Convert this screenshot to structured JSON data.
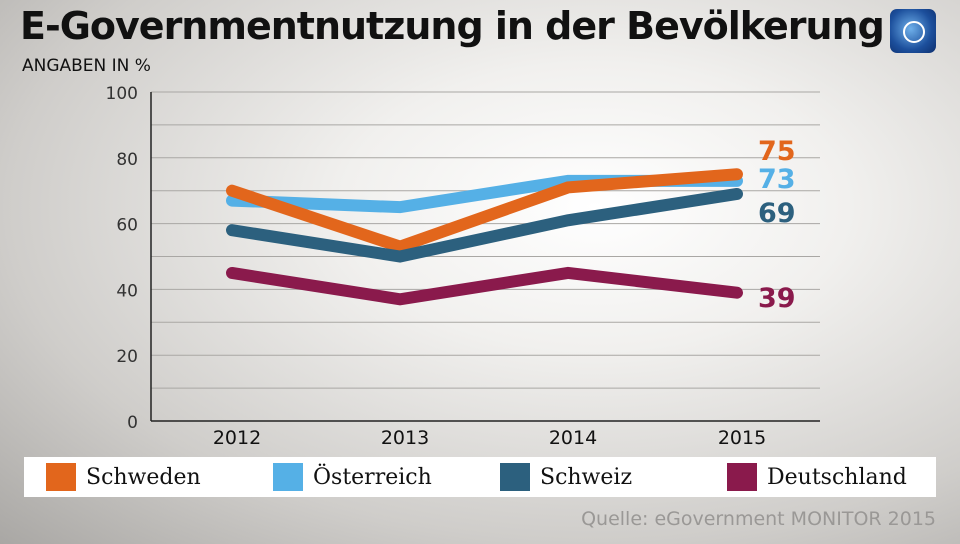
{
  "title": "E-Governmentnutzung in der Bevölkerung",
  "logo_icon": "tagesschau-globe-icon",
  "source": "Quelle: eGovernment MONITOR 2015",
  "chart_data": {
    "type": "line",
    "subtitle": "ANGABEN IN %",
    "categories": [
      "2012",
      "2013",
      "2014",
      "2015"
    ],
    "ylim": [
      0,
      100
    ],
    "yticks": [
      0,
      20,
      40,
      60,
      80,
      100
    ],
    "grid": true,
    "legend": "bottom",
    "series": [
      {
        "name": "Schweden",
        "color": "#e2661c",
        "values": [
          70,
          53,
          71,
          75
        ],
        "end_label": "75"
      },
      {
        "name": "Österreich",
        "color": "#55b0e6",
        "values": [
          67,
          65,
          73,
          73
        ],
        "end_label": "73"
      },
      {
        "name": "Schweiz",
        "color": "#2c607e",
        "values": [
          58,
          50,
          61,
          69
        ],
        "end_label": "69"
      },
      {
        "name": "Deutschland",
        "color": "#8a1a4c",
        "values": [
          45,
          37,
          45,
          39
        ],
        "end_label": "39"
      }
    ]
  }
}
